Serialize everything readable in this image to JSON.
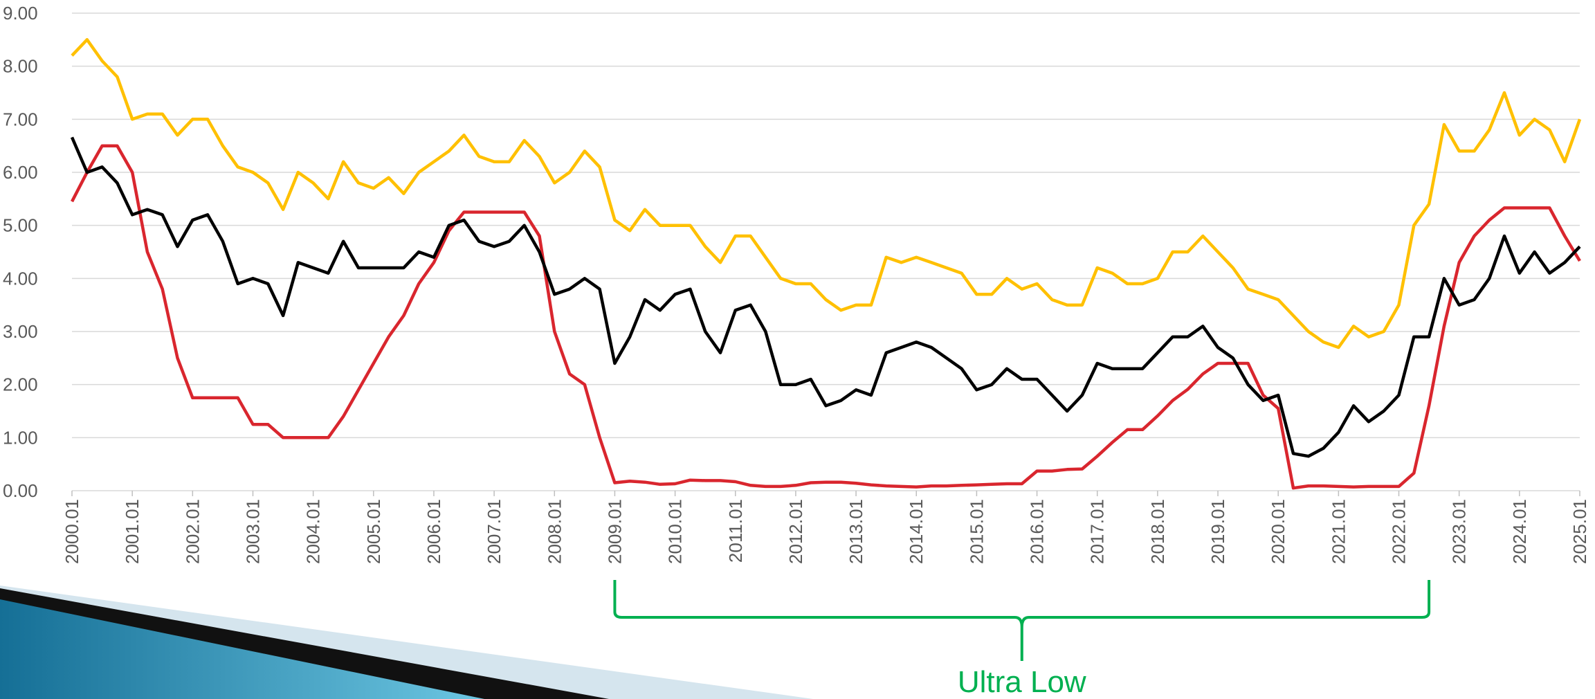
{
  "chart_data": {
    "type": "line",
    "x": [
      2000,
      2000.25,
      2000.5,
      2000.75,
      2001,
      2001.25,
      2001.5,
      2001.75,
      2002,
      2002.25,
      2002.5,
      2002.75,
      2003,
      2003.25,
      2003.5,
      2003.75,
      2004,
      2004.25,
      2004.5,
      2004.75,
      2005,
      2005.25,
      2005.5,
      2005.75,
      2006,
      2006.25,
      2006.5,
      2006.75,
      2007,
      2007.25,
      2007.5,
      2007.75,
      2008,
      2008.25,
      2008.5,
      2008.75,
      2009,
      2009.25,
      2009.5,
      2009.75,
      2010,
      2010.25,
      2010.5,
      2010.75,
      2011,
      2011.25,
      2011.5,
      2011.75,
      2012,
      2012.25,
      2012.5,
      2012.75,
      2013,
      2013.25,
      2013.5,
      2013.75,
      2014,
      2014.25,
      2014.5,
      2014.75,
      2015,
      2015.25,
      2015.5,
      2015.75,
      2016,
      2016.25,
      2016.5,
      2016.75,
      2017,
      2017.25,
      2017.5,
      2017.75,
      2018,
      2018.25,
      2018.5,
      2018.75,
      2019,
      2019.25,
      2019.5,
      2019.75,
      2020,
      2020.25,
      2020.5,
      2020.75,
      2021,
      2021.25,
      2021.5,
      2021.75,
      2022,
      2022.25,
      2022.5,
      2022.75,
      2023,
      2023.25,
      2023.5,
      2023.75,
      2024,
      2024.25,
      2024.5,
      2024.75,
      2025
    ],
    "series": [
      {
        "color": "#ffc000",
        "values": [
          8.2,
          8.5,
          8.1,
          7.8,
          7.0,
          7.1,
          7.1,
          6.7,
          7.0,
          7.0,
          6.5,
          6.1,
          6.0,
          5.8,
          5.3,
          6.0,
          5.8,
          5.5,
          6.2,
          5.8,
          5.7,
          5.9,
          5.6,
          6.0,
          6.2,
          6.4,
          6.7,
          6.3,
          6.2,
          6.2,
          6.6,
          6.3,
          5.8,
          6.0,
          6.4,
          6.1,
          5.1,
          4.9,
          5.3,
          5.0,
          5.0,
          5.0,
          4.6,
          4.3,
          4.8,
          4.8,
          4.4,
          4.0,
          3.9,
          3.9,
          3.6,
          3.4,
          3.5,
          3.5,
          4.4,
          4.3,
          4.4,
          4.3,
          4.2,
          4.1,
          3.7,
          3.7,
          4.0,
          3.8,
          3.9,
          3.6,
          3.5,
          3.5,
          4.2,
          4.1,
          3.9,
          3.9,
          4.0,
          4.5,
          4.5,
          4.8,
          4.5,
          4.2,
          3.8,
          3.7,
          3.6,
          3.3,
          3.0,
          2.8,
          2.7,
          3.1,
          2.9,
          3.0,
          3.5,
          5.0,
          5.4,
          6.9,
          6.4,
          6.4,
          6.8,
          7.5,
          6.7,
          7.0,
          6.8,
          6.2,
          7.0
        ]
      },
      {
        "color": "#d9262e",
        "values": [
          5.45,
          6.0,
          6.5,
          6.5,
          6.0,
          4.5,
          3.8,
          2.5,
          1.75,
          1.75,
          1.75,
          1.75,
          1.25,
          1.25,
          1.0,
          1.0,
          1.0,
          1.0,
          1.4,
          1.9,
          2.4,
          2.9,
          3.3,
          3.9,
          4.3,
          4.9,
          5.25,
          5.25,
          5.25,
          5.25,
          5.25,
          4.8,
          3.0,
          2.2,
          2.0,
          1.0,
          0.15,
          0.18,
          0.16,
          0.12,
          0.13,
          0.2,
          0.19,
          0.19,
          0.17,
          0.1,
          0.08,
          0.08,
          0.1,
          0.15,
          0.16,
          0.16,
          0.14,
          0.11,
          0.09,
          0.08,
          0.07,
          0.09,
          0.09,
          0.1,
          0.11,
          0.12,
          0.13,
          0.13,
          0.37,
          0.37,
          0.4,
          0.41,
          0.65,
          0.91,
          1.15,
          1.15,
          1.41,
          1.7,
          1.91,
          2.2,
          2.4,
          2.4,
          2.4,
          1.8,
          1.55,
          0.05,
          0.09,
          0.09,
          0.08,
          0.07,
          0.08,
          0.08,
          0.08,
          0.33,
          1.6,
          3.1,
          4.3,
          4.8,
          5.1,
          5.33,
          5.33,
          5.33,
          5.33,
          4.8,
          4.33
        ]
      },
      {
        "color": "#000000",
        "values": [
          6.66,
          6.0,
          6.1,
          5.8,
          5.2,
          5.3,
          5.2,
          4.6,
          5.1,
          5.2,
          4.7,
          3.9,
          4.0,
          3.9,
          3.3,
          4.3,
          4.2,
          4.1,
          4.7,
          4.2,
          4.2,
          4.2,
          4.2,
          4.5,
          4.4,
          5.0,
          5.1,
          4.7,
          4.6,
          4.7,
          5.0,
          4.5,
          3.7,
          3.8,
          4.0,
          3.8,
          2.4,
          2.9,
          3.6,
          3.4,
          3.7,
          3.8,
          3.0,
          2.6,
          3.4,
          3.5,
          3.0,
          2.0,
          2.0,
          2.1,
          1.6,
          1.7,
          1.9,
          1.8,
          2.6,
          2.7,
          2.8,
          2.7,
          2.5,
          2.3,
          1.9,
          2.0,
          2.3,
          2.1,
          2.1,
          1.8,
          1.5,
          1.8,
          2.4,
          2.3,
          2.3,
          2.3,
          2.6,
          2.9,
          2.9,
          3.1,
          2.7,
          2.5,
          2.0,
          1.7,
          1.8,
          0.7,
          0.65,
          0.8,
          1.1,
          1.6,
          1.3,
          1.5,
          1.8,
          2.9,
          2.9,
          4.0,
          3.5,
          3.6,
          4.0,
          4.8,
          4.1,
          4.5,
          4.1,
          4.3,
          4.6
        ]
      }
    ],
    "xlim": [
      2000,
      2025
    ],
    "xticks": [
      {
        "value": 2000,
        "label": "2000.01"
      },
      {
        "value": 2001,
        "label": "2001.01"
      },
      {
        "value": 2002,
        "label": "2002.01"
      },
      {
        "value": 2003,
        "label": "2003.01"
      },
      {
        "value": 2004,
        "label": "2004.01"
      },
      {
        "value": 2005,
        "label": "2005.01"
      },
      {
        "value": 2006,
        "label": "2006.01"
      },
      {
        "value": 2007,
        "label": "2007.01"
      },
      {
        "value": 2008,
        "label": "2008.01"
      },
      {
        "value": 2009,
        "label": "2009.01"
      },
      {
        "value": 2010,
        "label": "2010.01"
      },
      {
        "value": 2011,
        "label": "2011.01"
      },
      {
        "value": 2012,
        "label": "2012.01"
      },
      {
        "value": 2013,
        "label": "2013.01"
      },
      {
        "value": 2014,
        "label": "2014.01"
      },
      {
        "value": 2015,
        "label": "2015.01"
      },
      {
        "value": 2016,
        "label": "2016.01"
      },
      {
        "value": 2017,
        "label": "2017.01"
      },
      {
        "value": 2018,
        "label": "2018.01"
      },
      {
        "value": 2019,
        "label": "2019.01"
      },
      {
        "value": 2020,
        "label": "2020.01"
      },
      {
        "value": 2021,
        "label": "2021.01"
      },
      {
        "value": 2022,
        "label": "2022.01"
      },
      {
        "value": 2023,
        "label": "2023.01"
      },
      {
        "value": 2024,
        "label": "2024.01"
      },
      {
        "value": 2025,
        "label": "2025.01"
      }
    ],
    "ylim": [
      0,
      9
    ],
    "yticks": [
      {
        "value": 0,
        "label": "0.00"
      },
      {
        "value": 1,
        "label": "1.00"
      },
      {
        "value": 2,
        "label": "2.00"
      },
      {
        "value": 3,
        "label": "3.00"
      },
      {
        "value": 4,
        "label": "4.00"
      },
      {
        "value": 5,
        "label": "5.00"
      },
      {
        "value": 6,
        "label": "6.00"
      },
      {
        "value": 7,
        "label": "7.00"
      },
      {
        "value": 8,
        "label": "8.00"
      },
      {
        "value": 9,
        "label": "9.00"
      }
    ],
    "grid": true,
    "annotation": {
      "text": "Ultra Low",
      "xrange": [
        2009,
        2022.5
      ],
      "color": "#00b050"
    }
  }
}
